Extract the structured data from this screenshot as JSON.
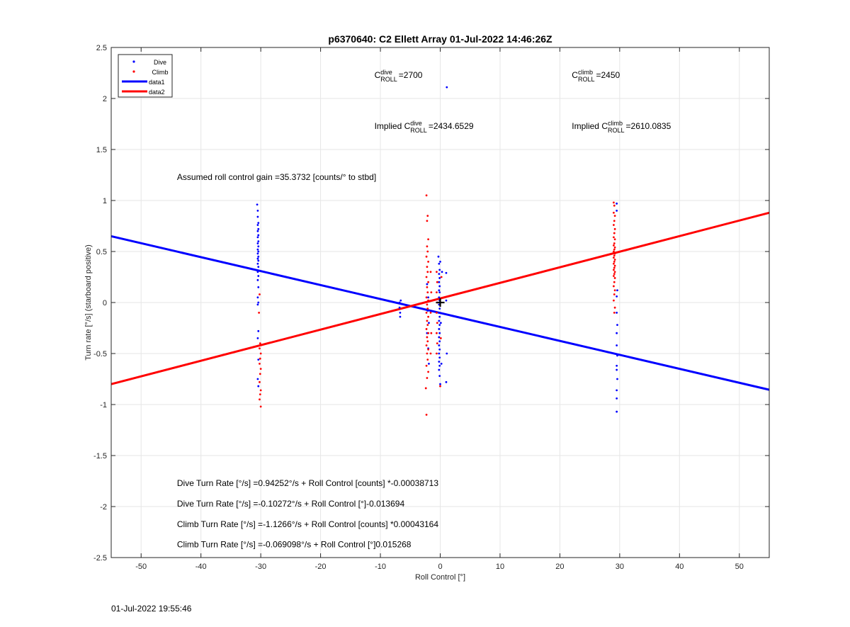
{
  "chart_data": {
    "type": "scatter",
    "title": "p6370640: C2 Ellett Array 01-Jul-2022 14:46:26Z",
    "xlabel": "Roll Control [°]",
    "ylabel": "Turn rate [°/s] (starboard positive)",
    "xlim": [
      -55,
      55
    ],
    "ylim": [
      -2.5,
      2.5
    ],
    "xticks": [
      -50,
      -40,
      -30,
      -20,
      -10,
      0,
      10,
      20,
      30,
      40,
      50
    ],
    "xtick_labels": [
      "-50",
      "-40",
      "-30",
      "-20",
      "-10",
      "0",
      "10",
      "20",
      "30",
      "40",
      "50"
    ],
    "yticks": [
      -2.5,
      -2,
      -1.5,
      -1,
      -0.5,
      0,
      0.5,
      1,
      1.5,
      2,
      2.5
    ],
    "ytick_labels": [
      "-2.5",
      "-2",
      "-1.5",
      "-1",
      "-0.5",
      "0",
      "0.5",
      "1",
      "1.5",
      "2",
      "2.5"
    ],
    "grid": true,
    "legend_position": "top-left",
    "legend": [
      {
        "label": "Dive",
        "style": "dot",
        "color": "#0000ff"
      },
      {
        "label": "Climb",
        "style": "dot",
        "color": "#ff0000"
      },
      {
        "label": "data1",
        "style": "line",
        "color": "#0000ff"
      },
      {
        "label": "data2",
        "style": "line",
        "color": "#ff0000"
      }
    ],
    "series": [
      {
        "name": "Dive",
        "color": "#0000ff",
        "points": [
          [
            -30.6,
            0.96
          ],
          [
            -30.5,
            0.9
          ],
          [
            -30.5,
            0.84
          ],
          [
            -30.4,
            0.78
          ],
          [
            -30.5,
            0.76
          ],
          [
            -30.4,
            0.72
          ],
          [
            -30.5,
            0.7
          ],
          [
            -30.4,
            0.66
          ],
          [
            -30.5,
            0.64
          ],
          [
            -30.4,
            0.6
          ],
          [
            -30.5,
            0.58
          ],
          [
            -30.4,
            0.55
          ],
          [
            -30.5,
            0.52
          ],
          [
            -30.4,
            0.5
          ],
          [
            -30.5,
            0.48
          ],
          [
            -30.4,
            0.45
          ],
          [
            -30.5,
            0.43
          ],
          [
            -30.4,
            0.41
          ],
          [
            -30.5,
            0.38
          ],
          [
            -30.4,
            0.35
          ],
          [
            -30.5,
            0.3
          ],
          [
            -30.4,
            0.26
          ],
          [
            -30.5,
            0.22
          ],
          [
            -30.4,
            0.15
          ],
          [
            -30.5,
            0.05
          ],
          [
            -30.4,
            0.0
          ],
          [
            -30.5,
            -0.02
          ],
          [
            -30.4,
            -0.28
          ],
          [
            -30.5,
            -0.35
          ],
          [
            -30.4,
            -0.56
          ],
          [
            -30.5,
            -0.75
          ],
          [
            -30.4,
            -0.82
          ],
          [
            -6.8,
            0.0
          ],
          [
            -6.8,
            -0.05
          ],
          [
            -6.7,
            -0.1
          ],
          [
            -6.7,
            -0.14
          ],
          [
            -6.6,
            0.02
          ],
          [
            -2.2,
            0.18
          ],
          [
            -2.0,
            0.05
          ],
          [
            -2.1,
            -0.08
          ],
          [
            -1.9,
            -0.2
          ],
          [
            -2.2,
            -0.3
          ],
          [
            -2.0,
            -0.45
          ],
          [
            -1.9,
            -0.6
          ],
          [
            -0.3,
            0.45
          ],
          [
            -0.2,
            0.38
          ],
          [
            -0.1,
            0.32
          ],
          [
            -0.2,
            0.28
          ],
          [
            -0.1,
            0.24
          ],
          [
            -0.2,
            0.2
          ],
          [
            -0.1,
            0.16
          ],
          [
            -0.2,
            0.12
          ],
          [
            -0.1,
            0.1
          ],
          [
            -0.2,
            0.05
          ],
          [
            -0.1,
            0.02
          ],
          [
            -0.2,
            -0.02
          ],
          [
            -0.1,
            -0.06
          ],
          [
            -0.2,
            -0.1
          ],
          [
            -0.1,
            -0.14
          ],
          [
            -0.2,
            -0.18
          ],
          [
            -0.1,
            -0.22
          ],
          [
            -0.2,
            -0.26
          ],
          [
            -0.1,
            -0.3
          ],
          [
            -0.2,
            -0.34
          ],
          [
            -0.1,
            -0.38
          ],
          [
            -0.2,
            -0.42
          ],
          [
            -0.1,
            -0.46
          ],
          [
            -0.2,
            -0.5
          ],
          [
            -0.1,
            -0.54
          ],
          [
            -0.2,
            -0.58
          ],
          [
            -0.1,
            -0.62
          ],
          [
            -0.2,
            -0.66
          ],
          [
            -0.1,
            -0.72
          ],
          [
            0.0,
            0.4
          ],
          [
            0.1,
            -0.2
          ],
          [
            0.0,
            -0.8
          ],
          [
            0.3,
            0.3
          ],
          [
            0.2,
            -0.6
          ],
          [
            1.1,
            2.11
          ],
          [
            1.0,
            0.29
          ],
          [
            1.0,
            0.02
          ],
          [
            1.1,
            -0.5
          ],
          [
            1.0,
            -0.78
          ],
          [
            29.5,
            0.97
          ],
          [
            29.5,
            0.9
          ],
          [
            29.6,
            0.12
          ],
          [
            29.5,
            0.06
          ],
          [
            29.5,
            -0.1
          ],
          [
            29.6,
            -0.22
          ],
          [
            29.5,
            -0.3
          ],
          [
            29.5,
            -0.42
          ],
          [
            29.6,
            -0.52
          ],
          [
            29.5,
            -0.62
          ],
          [
            29.5,
            -0.66
          ],
          [
            29.6,
            -0.75
          ],
          [
            29.5,
            -0.86
          ],
          [
            29.5,
            -0.94
          ],
          [
            29.5,
            -1.07
          ]
        ]
      },
      {
        "name": "Climb",
        "color": "#ff0000",
        "points": [
          [
            -30.2,
            0.08
          ],
          [
            -30.3,
            -0.1
          ],
          [
            -30.1,
            -0.4
          ],
          [
            -30.2,
            -0.45
          ],
          [
            -30.0,
            -0.5
          ],
          [
            -30.1,
            -0.55
          ],
          [
            -30.2,
            -0.6
          ],
          [
            -30.0,
            -0.65
          ],
          [
            -30.1,
            -0.7
          ],
          [
            -30.2,
            -0.78
          ],
          [
            -30.0,
            -0.86
          ],
          [
            -30.1,
            -0.9
          ],
          [
            -30.2,
            -0.95
          ],
          [
            -30.0,
            -1.02
          ],
          [
            -2.3,
            1.05
          ],
          [
            -2.1,
            0.85
          ],
          [
            -2.2,
            0.8
          ],
          [
            -2.0,
            0.62
          ],
          [
            -2.2,
            0.55
          ],
          [
            -2.1,
            0.5
          ],
          [
            -2.3,
            0.45
          ],
          [
            -2.0,
            0.4
          ],
          [
            -2.2,
            0.35
          ],
          [
            -2.1,
            0.3
          ],
          [
            -2.3,
            0.25
          ],
          [
            -2.0,
            0.2
          ],
          [
            -2.2,
            0.15
          ],
          [
            -2.1,
            0.1
          ],
          [
            -2.3,
            0.05
          ],
          [
            -2.0,
            0.02
          ],
          [
            -2.2,
            -0.02
          ],
          [
            -2.1,
            -0.06
          ],
          [
            -2.3,
            -0.1
          ],
          [
            -2.0,
            -0.14
          ],
          [
            -2.2,
            -0.18
          ],
          [
            -2.1,
            -0.22
          ],
          [
            -2.3,
            -0.26
          ],
          [
            -2.0,
            -0.3
          ],
          [
            -2.2,
            -0.34
          ],
          [
            -2.1,
            -0.38
          ],
          [
            -2.3,
            -0.42
          ],
          [
            -2.0,
            -0.46
          ],
          [
            -2.2,
            -0.5
          ],
          [
            -2.1,
            -0.56
          ],
          [
            -2.3,
            -0.62
          ],
          [
            -2.0,
            -0.68
          ],
          [
            -2.2,
            -0.74
          ],
          [
            -2.4,
            -0.84
          ],
          [
            -2.3,
            -1.1
          ],
          [
            -1.6,
            0.3
          ],
          [
            -1.5,
            0.1
          ],
          [
            -1.6,
            -0.1
          ],
          [
            -1.5,
            -0.3
          ],
          [
            -1.6,
            -0.5
          ],
          [
            -0.6,
            0.3
          ],
          [
            -0.5,
            0.2
          ],
          [
            -0.6,
            0.1
          ],
          [
            -0.5,
            0.0
          ],
          [
            -0.6,
            -0.1
          ],
          [
            -0.5,
            -0.2
          ],
          [
            -0.6,
            -0.3
          ],
          [
            -0.5,
            -0.4
          ],
          [
            -0.6,
            -0.5
          ],
          [
            0.0,
            -0.82
          ],
          [
            0.2,
            0.25
          ],
          [
            0.1,
            -0.35
          ],
          [
            29.0,
            0.98
          ],
          [
            29.1,
            0.95
          ],
          [
            29.0,
            0.88
          ],
          [
            29.2,
            0.85
          ],
          [
            29.1,
            0.8
          ],
          [
            29.0,
            0.76
          ],
          [
            29.2,
            0.72
          ],
          [
            29.1,
            0.68
          ],
          [
            29.0,
            0.64
          ],
          [
            29.2,
            0.62
          ],
          [
            29.1,
            0.58
          ],
          [
            29.0,
            0.56
          ],
          [
            29.2,
            0.54
          ],
          [
            29.1,
            0.52
          ],
          [
            29.0,
            0.5
          ],
          [
            29.2,
            0.48
          ],
          [
            29.1,
            0.46
          ],
          [
            29.0,
            0.44
          ],
          [
            29.2,
            0.42
          ],
          [
            29.1,
            0.4
          ],
          [
            29.0,
            0.38
          ],
          [
            29.2,
            0.36
          ],
          [
            29.1,
            0.34
          ],
          [
            29.0,
            0.32
          ],
          [
            29.2,
            0.3
          ],
          [
            29.1,
            0.28
          ],
          [
            29.0,
            0.26
          ],
          [
            29.2,
            0.24
          ],
          [
            29.1,
            0.2
          ],
          [
            29.0,
            0.16
          ],
          [
            29.2,
            0.12
          ],
          [
            29.1,
            0.08
          ],
          [
            29.0,
            0.02
          ],
          [
            29.2,
            -0.05
          ],
          [
            29.1,
            -0.1
          ]
        ]
      },
      {
        "name": "data1",
        "color": "#0000ff",
        "style": "line",
        "x": [
          -55,
          55
        ],
        "y": [
          0.65,
          -0.855
        ]
      },
      {
        "name": "data2",
        "color": "#ff0000",
        "style": "line",
        "x": [
          -55,
          55
        ],
        "y": [
          -0.8,
          0.88
        ]
      }
    ],
    "marker": {
      "x": 0,
      "y": 0,
      "symbol": "+",
      "color": "#000000"
    },
    "annotations": [
      {
        "type": "c",
        "sym": "C",
        "sup": "dive",
        "sub": "ROLL",
        "suffix": "=2700",
        "x": -11,
        "y": 2.2
      },
      {
        "type": "c",
        "sym": "C",
        "sup": "climb",
        "sub": "ROLL",
        "suffix": "=2450",
        "x": 22,
        "y": 2.2
      },
      {
        "type": "c",
        "prefix": "Implied ",
        "sym": "C",
        "sup": "dive",
        "sub": "ROLL",
        "suffix": "=2434.6529",
        "x": -11,
        "y": 1.7
      },
      {
        "type": "c",
        "prefix": "Implied ",
        "sym": "C",
        "sup": "climb",
        "sub": "ROLL",
        "suffix": "=2610.0835",
        "x": 22,
        "y": 1.7
      },
      {
        "type": "plain",
        "text": "Assumed roll control gain =35.3732 [counts/° to stbd]",
        "x": -44,
        "y": 1.2
      },
      {
        "type": "plain",
        "text": "Dive Turn Rate [°/s] =0.94252°/s + Roll Control [counts] *-0.00038713",
        "x": -44,
        "y": -1.8
      },
      {
        "type": "plain",
        "text": "Dive Turn Rate [°/s] =-0.10272°/s + Roll Control [°]-0.013694",
        "x": -44,
        "y": -2.0
      },
      {
        "type": "plain",
        "text": "Climb Turn Rate [°/s] =-1.1266°/s + Roll Control [counts] *0.00043164",
        "x": -44,
        "y": -2.2
      },
      {
        "type": "plain",
        "text": "Climb Turn Rate [°/s] =-0.069098°/s + Roll Control [°]0.015268",
        "x": -44,
        "y": -2.4
      }
    ]
  },
  "footer": {
    "timestamp": "01-Jul-2022 19:55:46"
  }
}
